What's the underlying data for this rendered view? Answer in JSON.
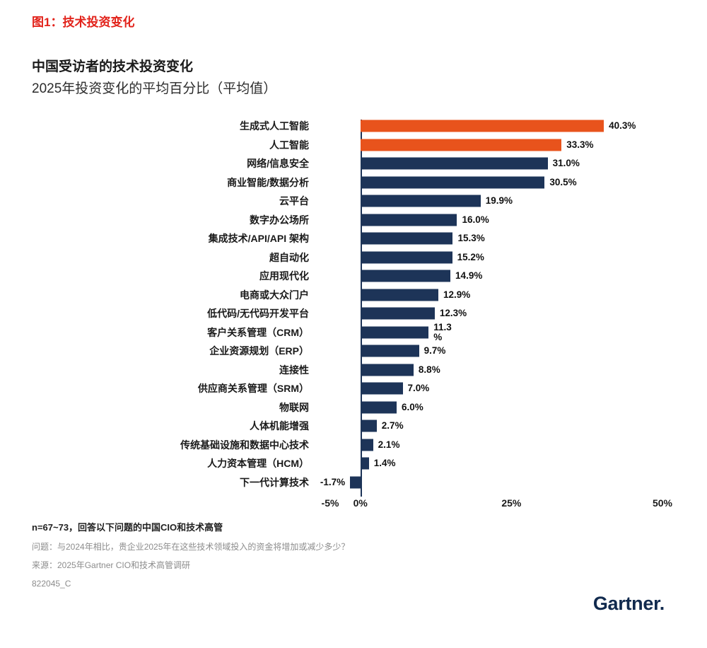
{
  "figure_label": "图1：技术投资变化",
  "header": {
    "title": "中国受访者的技术投资变化",
    "subtitle": "2025年投资变化的平均百分比（平均值）"
  },
  "chart_data": {
    "type": "bar",
    "orientation": "horizontal",
    "title": "中国受访者的技术投资变化",
    "subtitle": "2025年投资变化的平均百分比（平均值）",
    "categories": [
      "生成式人工智能",
      "人工智能",
      "网络/信息安全",
      "商业智能/数据分析",
      "云平台",
      "数字办公场所",
      "集成技术/API/API 架构",
      "超自动化",
      "应用现代化",
      "电商或大众门户",
      "低代码/无代码开发平台",
      "客户关系管理（CRM）",
      "企业资源规划（ERP）",
      "连接性",
      "供应商关系管理（SRM）",
      "物联网",
      "人体机能增强",
      "传统基础设施和数据中心技术",
      "人力资本管理（HCM）",
      "下一代计算技术"
    ],
    "values": [
      40.3,
      33.3,
      31.0,
      30.5,
      19.9,
      16.0,
      15.3,
      15.2,
      14.9,
      12.9,
      12.3,
      11.3,
      9.7,
      8.8,
      7.0,
      6.0,
      2.7,
      2.1,
      1.4,
      -1.7
    ],
    "value_labels": [
      "40.3%",
      "33.3%",
      "31.0%",
      "30.5%",
      "19.9%",
      "16.0%",
      "15.3%",
      "15.2%",
      "14.9%",
      "12.9%",
      "12.3%",
      "11.3\n%",
      "9.7%",
      "8.8%",
      "7.0%",
      "6.0%",
      "2.7%",
      "2.1%",
      "1.4%",
      "-1.7%"
    ],
    "highlight_indices": [
      0,
      1
    ],
    "colors": {
      "highlight": "#e8531c",
      "default": "#1d3458",
      "zero_axis": "#1d3458"
    },
    "xlim": [
      -5,
      50
    ],
    "x_ticks": [
      "-5%",
      "0%",
      "25%",
      "50%"
    ],
    "x_tick_values": [
      -5,
      0,
      25,
      50
    ],
    "xlabel": "",
    "ylabel": "",
    "grid": false,
    "legend": false
  },
  "footnotes": {
    "sample": "n=67~73，回答以下问题的中国CIO和技术高管",
    "question": "问题：与2024年相比，贵企业2025年在这些技术领域投入的资金将增加或减少多少？",
    "source": "来源：2025年Gartner CIO和技术高管调研",
    "doc_id": "822045_C"
  },
  "logo_text": "Gartner."
}
